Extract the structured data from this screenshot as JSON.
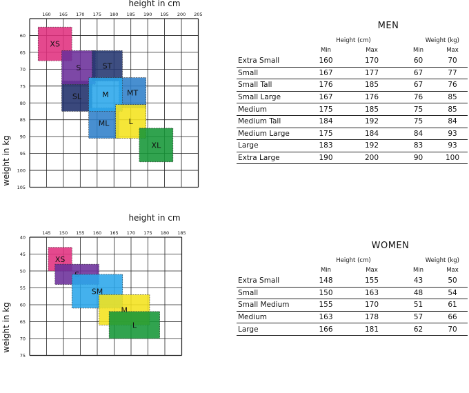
{
  "charts": {
    "men": {
      "xlabel": "height in cm",
      "ylabel": "weight in kg",
      "xticks": [
        "160",
        "165",
        "170",
        "175",
        "180",
        "185",
        "190",
        "195",
        "200",
        "205"
      ],
      "yticks": [
        "60",
        "65",
        "70",
        "75",
        "80",
        "85",
        "90",
        "95",
        "100",
        "105"
      ]
    },
    "women": {
      "xlabel": "height in cm",
      "ylabel": "weight in kg",
      "xticks": [
        "145",
        "150",
        "155",
        "160",
        "165",
        "170",
        "175",
        "180",
        "185"
      ],
      "yticks": [
        "40",
        "45",
        "50",
        "55",
        "60",
        "65",
        "70",
        "75"
      ]
    }
  },
  "chart_data": [
    {
      "type": "table",
      "title": "",
      "xlabel": "height in cm",
      "ylabel": "weight in kg",
      "xlim": [
        157.5,
        207.5
      ],
      "ylim": [
        57.5,
        105
      ],
      "grid": true,
      "boxes": [
        {
          "label": "XS",
          "x": [
            160,
            170
          ],
          "y": [
            60,
            70
          ],
          "color": "#e0307e"
        },
        {
          "label": "SL",
          "x": [
            167,
            176
          ],
          "y": [
            76,
            85
          ],
          "color": "#1f2f6a"
        },
        {
          "label": "S",
          "x": [
            167,
            177
          ],
          "y": [
            67,
            77
          ],
          "color": "#6b2f9a"
        },
        {
          "label": "ST",
          "x": [
            176,
            185
          ],
          "y": [
            67,
            76
          ],
          "color": "#23356f"
        },
        {
          "label": "ML",
          "x": [
            175,
            184
          ],
          "y": [
            84,
            93
          ],
          "color": "#2f7fc9"
        },
        {
          "label": "MT",
          "x": [
            184,
            192
          ],
          "y": [
            75,
            84
          ],
          "color": "#2f7fc9"
        },
        {
          "label": "M",
          "x": [
            175,
            185
          ],
          "y": [
            75,
            85
          ],
          "color": "#2aa6ea"
        },
        {
          "label": "L",
          "x": [
            183,
            192
          ],
          "y": [
            83,
            93
          ],
          "color": "#f4e31c"
        },
        {
          "label": "XL",
          "x": [
            190,
            200
          ],
          "y": [
            90,
            100
          ],
          "color": "#159637"
        }
      ]
    },
    {
      "type": "table",
      "title": "",
      "xlabel": "height in cm",
      "ylabel": "weight in kg",
      "xlim": [
        142.5,
        187.5
      ],
      "ylim": [
        40,
        75
      ],
      "grid": true,
      "boxes": [
        {
          "label": "XS",
          "x": [
            148,
            155
          ],
          "y": [
            43,
            50
          ],
          "color": "#e0307e"
        },
        {
          "label": "S",
          "x": [
            150,
            163
          ],
          "y": [
            48,
            54
          ],
          "color": "#6b2f9a"
        },
        {
          "label": "SM",
          "x": [
            155,
            170
          ],
          "y": [
            51,
            61
          ],
          "color": "#2aa6ea"
        },
        {
          "label": "M",
          "x": [
            163,
            178
          ],
          "y": [
            57,
            66
          ],
          "color": "#f4e31c"
        },
        {
          "label": "L",
          "x": [
            166,
            181
          ],
          "y": [
            62,
            70
          ],
          "color": "#159637"
        }
      ]
    }
  ],
  "men_table": {
    "title": "MEN",
    "height_header": "Height (cm)",
    "weight_header": "Weight (kg)",
    "min_label": "Min",
    "max_label": "Max",
    "rows": [
      {
        "name": "Extra Small",
        "hmin": "160",
        "hmax": "170",
        "wmin": "60",
        "wmax": "70"
      },
      {
        "name": "Small",
        "hmin": "167",
        "hmax": "177",
        "wmin": "67",
        "wmax": "77"
      },
      {
        "name": "Small Tall",
        "hmin": "176",
        "hmax": "185",
        "wmin": "67",
        "wmax": "76"
      },
      {
        "name": "Small Large",
        "hmin": "167",
        "hmax": "176",
        "wmin": "76",
        "wmax": "85"
      },
      {
        "name": "Medium",
        "hmin": "175",
        "hmax": "185",
        "wmin": "75",
        "wmax": "85"
      },
      {
        "name": "Medium Tall",
        "hmin": "184",
        "hmax": "192",
        "wmin": "75",
        "wmax": "84"
      },
      {
        "name": "Medium Large",
        "hmin": "175",
        "hmax": "184",
        "wmin": "84",
        "wmax": "93"
      },
      {
        "name": "Large",
        "hmin": "183",
        "hmax": "192",
        "wmin": "83",
        "wmax": "93"
      },
      {
        "name": "Extra Large",
        "hmin": "190",
        "hmax": "200",
        "wmin": "90",
        "wmax": "100"
      }
    ]
  },
  "women_table": {
    "title": "WOMEN",
    "height_header": "Height (cm)",
    "weight_header": "Weight (kg)",
    "min_label": "Min",
    "max_label": "Max",
    "rows": [
      {
        "name": "Extra Small",
        "hmin": "148",
        "hmax": "155",
        "wmin": "43",
        "wmax": "50"
      },
      {
        "name": "Small",
        "hmin": "150",
        "hmax": "163",
        "wmin": "48",
        "wmax": "54"
      },
      {
        "name": "Small Medium",
        "hmin": "155",
        "hmax": "170",
        "wmin": "51",
        "wmax": "61"
      },
      {
        "name": "Medium",
        "hmin": "163",
        "hmax": "178",
        "wmin": "57",
        "wmax": "66"
      },
      {
        "name": "Large",
        "hmin": "166",
        "hmax": "181",
        "wmin": "62",
        "wmax": "70"
      }
    ]
  }
}
